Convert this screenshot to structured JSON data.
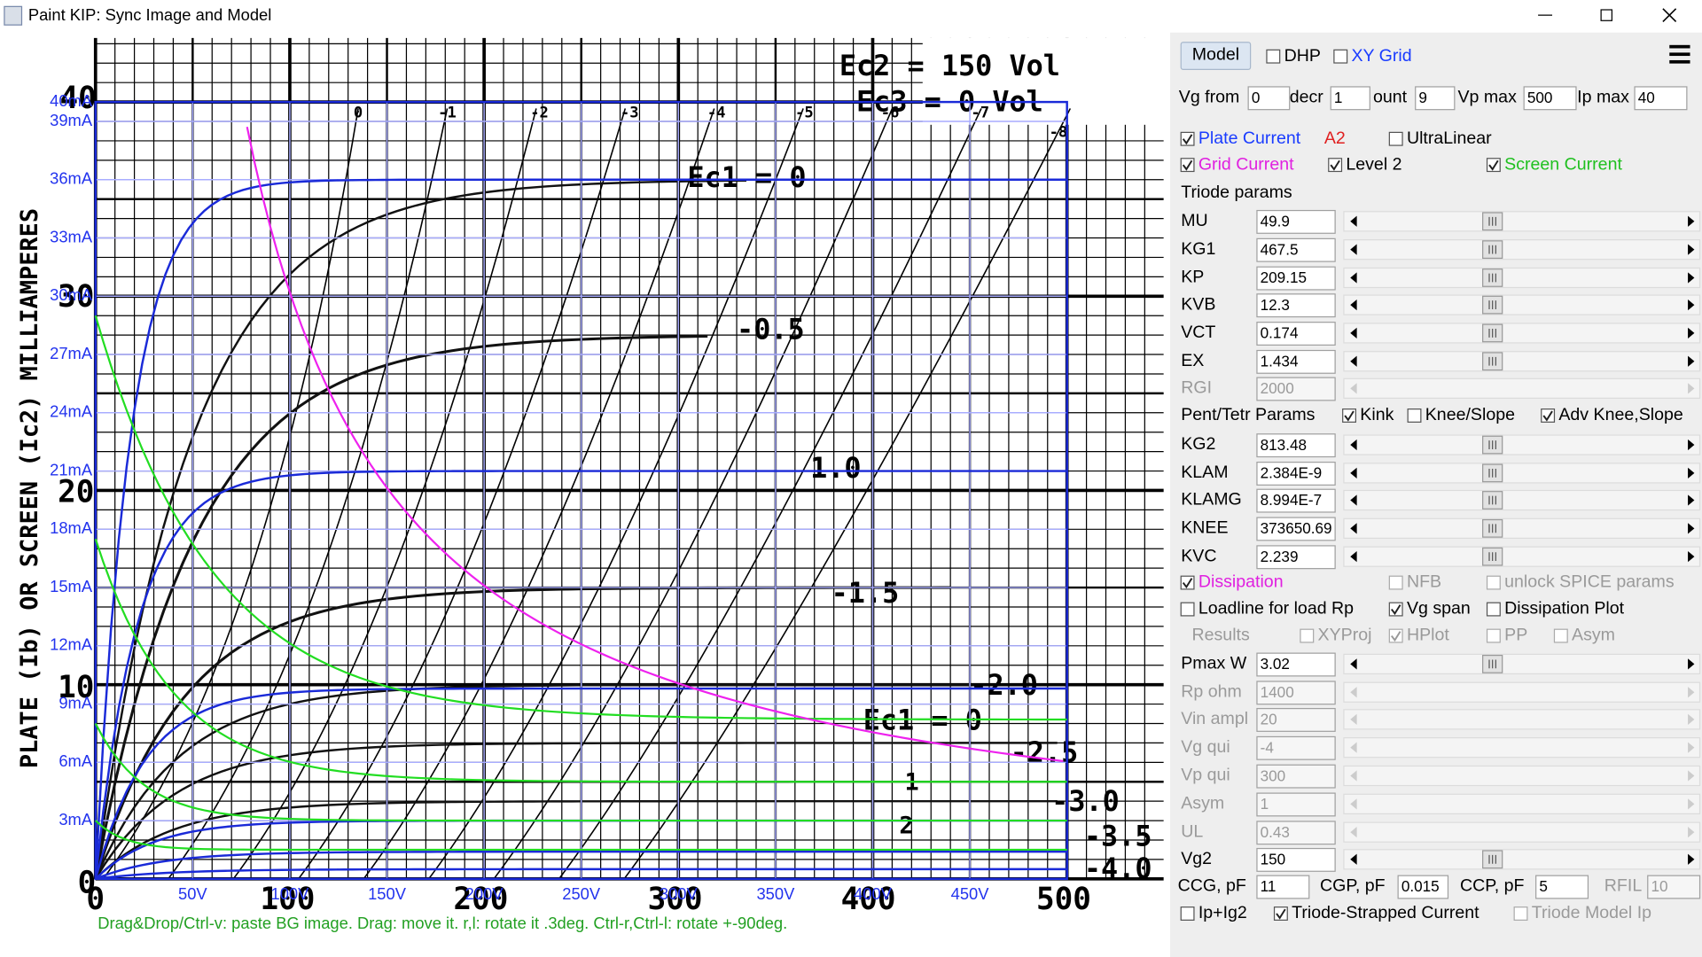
{
  "window": {
    "title": "Paint KIP: Sync Image and Model"
  },
  "plot": {
    "xlim": [
      0,
      500
    ],
    "ylim": [
      0,
      40
    ],
    "yticks": [
      {
        "value": 40,
        "label": "40mA"
      },
      {
        "value": 39,
        "label": "39mA"
      },
      {
        "value": 36,
        "label": "36mA"
      },
      {
        "value": 33,
        "label": "33mA"
      },
      {
        "value": 30,
        "label": "30mA"
      },
      {
        "value": 27,
        "label": "27mA"
      },
      {
        "value": 24,
        "label": "24mA"
      },
      {
        "value": 21,
        "label": "21mA"
      },
      {
        "value": 18,
        "label": "18mA"
      },
      {
        "value": 15,
        "label": "15mA"
      },
      {
        "value": 12,
        "label": "12mA"
      },
      {
        "value": 9,
        "label": "9mA"
      },
      {
        "value": 6,
        "label": "6mA"
      },
      {
        "value": 3,
        "label": "3mA"
      }
    ],
    "xticks": [
      {
        "value": 50,
        "label": "50V"
      },
      {
        "value": 100,
        "label": "100V"
      },
      {
        "value": 150,
        "label": "150V"
      },
      {
        "value": 200,
        "label": "200V"
      },
      {
        "value": 250,
        "label": "250V"
      },
      {
        "value": 300,
        "label": "300V"
      },
      {
        "value": 350,
        "label": "350V"
      },
      {
        "value": 400,
        "label": "400V"
      },
      {
        "value": 450,
        "label": "450V"
      }
    ],
    "status": "Drag&Drop/Ctrl-v: paste BG image. Drag: move it. r,l: rotate it .3deg. Ctrl-r,Ctrl-l: rotate +-90deg."
  },
  "scan": {
    "ylabel": "PLATE (Ib) OR SCREEN (Ic2) MILLIAMPERES",
    "labels": [
      "0",
      "10",
      "20",
      "30",
      "40",
      "0",
      "100",
      "200",
      "300",
      "400",
      "500",
      "0",
      "-1",
      "-2",
      "-3",
      "-4",
      "-5",
      "-6",
      "-7",
      "-8",
      "-0.5",
      "1.0",
      "-1.5",
      "-2.0",
      "-2.5",
      "-3.0",
      "-3.5",
      "-4.0",
      "Ec1 = 0",
      "Ec1 = 0",
      "1",
      "2",
      "Ec2 = 150 Vol",
      "Ec3 = 0 Vol"
    ]
  },
  "panel": {
    "model_button": "Model",
    "top_checks": [
      {
        "label": "DHP",
        "checked": false
      },
      {
        "label": "XY Grid",
        "checked": false,
        "color": "#1a3cff"
      }
    ],
    "ranges": [
      {
        "label": "Vg from",
        "value": 0
      },
      {
        "label": "decr",
        "value": 1
      },
      {
        "label": "ount",
        "value": 9
      },
      {
        "label": "Vp max",
        "value": 500
      },
      {
        "label": "Ip max",
        "value": 40
      }
    ],
    "check_rows": [
      [
        {
          "label": "Plate Current",
          "checked": true,
          "color": "#1a3cff"
        },
        {
          "label": "A2",
          "box": false,
          "color": "#e02020"
        },
        {
          "label": "UltraLinear",
          "checked": false
        }
      ],
      [
        {
          "label": "Grid Current",
          "checked": true,
          "color": "#e020e0"
        },
        {
          "label": "Level 2",
          "checked": true
        },
        {
          "label": "Screen Current",
          "checked": true,
          "color": "#20c020"
        }
      ]
    ],
    "triode_title": "Triode params",
    "triode": [
      {
        "name": "MU",
        "value": 49.9
      },
      {
        "name": "KG1",
        "value": 467.5
      },
      {
        "name": "KP",
        "value": 209.15
      },
      {
        "name": "KVB",
        "value": 12.3
      },
      {
        "name": "VCT",
        "value": 0.174
      },
      {
        "name": "EX",
        "value": 1.434
      },
      {
        "name": "RGI",
        "value": 2000,
        "enabled": false
      }
    ],
    "pent_title": "Pent/Tetr Params",
    "pent_checks": [
      {
        "label": "Kink",
        "checked": true
      },
      {
        "label": "Knee/Slope",
        "checked": false
      },
      {
        "label": "Adv Knee,Slope",
        "checked": true
      }
    ],
    "pent": [
      {
        "name": "KG2",
        "value": 813.48
      },
      {
        "name": "KLAM",
        "value": "2.384E-9"
      },
      {
        "name": "KLAMG",
        "value": "8.994E-7"
      },
      {
        "name": "KNEE",
        "value": 373650.69
      },
      {
        "name": "KVC",
        "value": 2.239
      }
    ],
    "check_rows2": [
      [
        {
          "label": "Dissipation",
          "checked": true,
          "color": "#e020e0"
        },
        {
          "label": "NFB",
          "checked": false,
          "enabled": false
        },
        {
          "label": "unlock SPICE params",
          "checked": false,
          "enabled": false
        }
      ],
      [
        {
          "label": "Loadline for load Rp",
          "checked": false
        },
        {
          "label": "Vg span",
          "checked": true
        },
        {
          "label": "Dissipation Plot",
          "checked": false
        }
      ],
      [
        {
          "label": "Results",
          "box": false,
          "enabled": false
        },
        {
          "label": "XYProj",
          "checked": false,
          "enabled": false
        },
        {
          "label": "HPlot",
          "checked": true,
          "enabled": false
        },
        {
          "label": "PP",
          "checked": false,
          "enabled": false
        },
        {
          "label": "Asym",
          "checked": false,
          "enabled": false
        }
      ]
    ],
    "sim": [
      {
        "name": "Pmax W",
        "value": 3.02
      },
      {
        "name": "Rp ohm",
        "value": 1400,
        "enabled": false
      },
      {
        "name": "Vin ampl",
        "value": 20,
        "enabled": false
      },
      {
        "name": "Vg qui",
        "value": -4,
        "enabled": false
      },
      {
        "name": "Vp qui",
        "value": 300,
        "enabled": false
      },
      {
        "name": "Asym",
        "value": 1,
        "enabled": false
      },
      {
        "name": "UL",
        "value": 0.43,
        "enabled": false
      },
      {
        "name": "Vg2",
        "value": 150
      }
    ],
    "caps": [
      {
        "label": "CCG, pF",
        "value": 11
      },
      {
        "label": "CGP, pF",
        "value": 0.015
      },
      {
        "label": "CCP, pF",
        "value": 5
      },
      {
        "label": "RFIL",
        "value": 10,
        "enabled": false
      }
    ],
    "bottom_checks": [
      {
        "label": "Ip+Ig2",
        "checked": false
      },
      {
        "label": "Triode-Strapped Current",
        "checked": true
      },
      {
        "label": "Triode Model Ip",
        "checked": false,
        "enabled": false
      }
    ]
  }
}
